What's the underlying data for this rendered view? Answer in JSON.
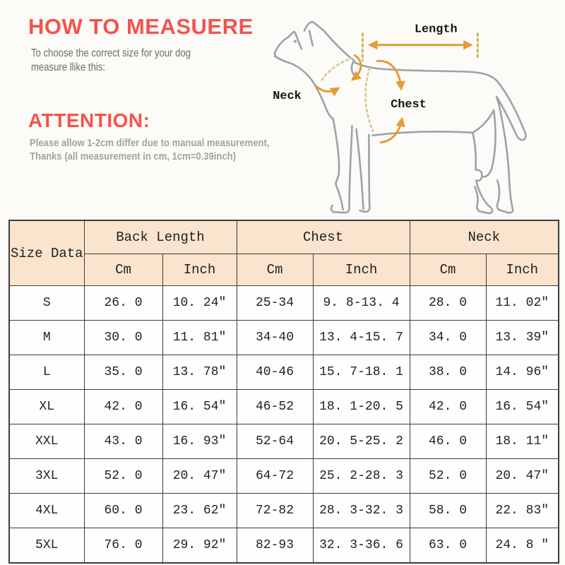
{
  "header": {
    "title": "HOW TO MEASUERE",
    "subtitle_line1": "To choose the correct size for your dog",
    "subtitle_line2": "measure llike this:",
    "attention_title": "ATTENTION:",
    "attention_line1": "Please allow 1-2cm differ due to manual measurement,",
    "attention_line2": "Thanks (all measurement in cm, 1cm=0.39inch)",
    "accent_color": "#f4534b"
  },
  "diagram": {
    "labels": {
      "length": "Length",
      "neck": "Neck",
      "chest": "Chest"
    },
    "outline_color": "#9ba2a9",
    "arrow_color": "#e59c35",
    "dash_color": "#d2b44c"
  },
  "size_table": {
    "corner_label": "Size Data",
    "header_bg": "#fbe4cd",
    "groups": [
      {
        "label": "Back Length"
      },
      {
        "label": "Chest"
      },
      {
        "label": "Neck"
      }
    ],
    "subheaders": [
      "Cm",
      "Inch",
      "Cm",
      "Inch",
      "Cm",
      "Inch"
    ],
    "rows": [
      {
        "size": "S",
        "cells": [
          "26. 0",
          "10. 24″",
          "25-34",
          "9. 8-13. 4",
          "28. 0",
          "11. 02″"
        ]
      },
      {
        "size": "M",
        "cells": [
          "30. 0",
          "11. 81″",
          "34-40",
          "13. 4-15. 7",
          "34. 0",
          "13. 39″"
        ]
      },
      {
        "size": "L",
        "cells": [
          "35. 0",
          "13. 78″",
          "40-46",
          "15. 7-18. 1",
          "38. 0",
          "14. 96″"
        ]
      },
      {
        "size": "XL",
        "cells": [
          "42. 0",
          "16. 54″",
          "46-52",
          "18. 1-20. 5",
          "42. 0",
          "16. 54″"
        ]
      },
      {
        "size": "XXL",
        "cells": [
          "43. 0",
          "16. 93″",
          "52-64",
          "20. 5-25. 2",
          "46. 0",
          "18. 11″"
        ]
      },
      {
        "size": "3XL",
        "cells": [
          "52. 0",
          "20. 47″",
          "64-72",
          "25. 2-28. 3",
          "52. 0",
          "20. 47″"
        ]
      },
      {
        "size": "4XL",
        "cells": [
          "60. 0",
          "23. 62″",
          "72-82",
          "28. 3-32. 3",
          "58. 0",
          "22. 83″"
        ]
      },
      {
        "size": "5XL",
        "cells": [
          "76. 0",
          "29. 92″",
          "82-93",
          "32. 3-36. 6",
          "63. 0",
          "24. 8 ″"
        ]
      }
    ]
  }
}
